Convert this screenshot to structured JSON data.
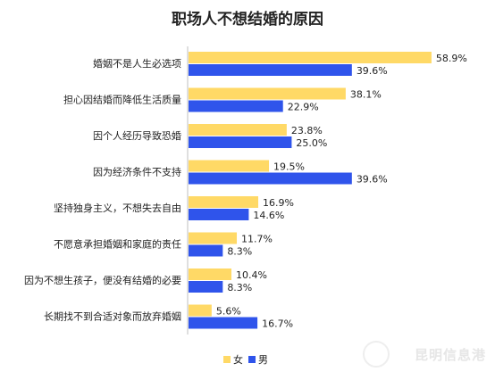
{
  "chart_data": {
    "type": "bar",
    "orientation": "horizontal",
    "title": "职场人不想结婚的原因",
    "categories": [
      "婚姻不是人生必选项",
      "担心因结婚而降低生活质量",
      "因个人经历导致恐婚",
      "因为经济条件不支持",
      "坚持独身主义，不想失去自由",
      "不愿意承担婚姻和家庭的责任",
      "因为不想生孩子，便没有结婚的必要",
      "长期找不到合适对象而放弃婚姻"
    ],
    "series": [
      {
        "name": "女",
        "values": [
          58.9,
          38.1,
          23.8,
          19.5,
          16.9,
          11.7,
          10.4,
          5.6
        ],
        "labels": [
          "58.9%",
          "38.1%",
          "23.8%",
          "19.5%",
          "16.9%",
          "11.7%",
          "10.4%",
          "5.6%"
        ]
      },
      {
        "name": "男",
        "values": [
          39.6,
          22.9,
          25.0,
          39.6,
          14.6,
          8.3,
          8.3,
          16.7
        ],
        "labels": [
          "39.6%",
          "22.9%",
          "25.0%",
          "39.6%",
          "14.6%",
          "8.3%",
          "8.3%",
          "16.7%"
        ]
      }
    ],
    "colors": {
      "女": "#FFD966",
      "男": "#2F54EB"
    },
    "xlim": [
      0,
      60
    ],
    "grid": false,
    "legend_position": "bottom-center"
  },
  "watermark": "昆明信息港"
}
